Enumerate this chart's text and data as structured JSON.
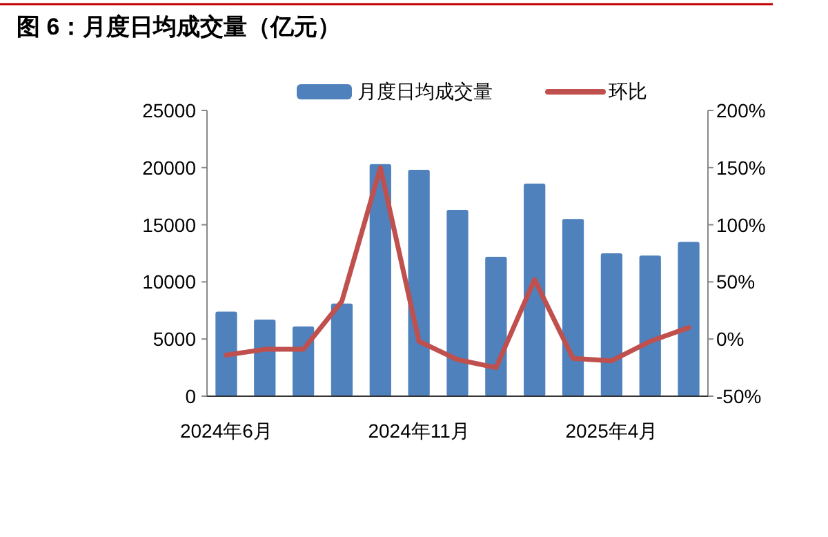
{
  "chart_data": {
    "type": "bar",
    "title": "图 6：月度日均成交量（亿元）",
    "categories": [
      "2024年6月",
      null,
      null,
      null,
      null,
      "2024年11月",
      null,
      null,
      null,
      null,
      "2025年4月",
      null,
      null
    ],
    "series": [
      {
        "name": "月度日均成交量",
        "color": "#4f81bd",
        "values": [
          7400,
          6700,
          6100,
          8100,
          20300,
          19800,
          16300,
          12200,
          18600,
          15500,
          12500,
          12300,
          13500
        ]
      },
      {
        "name": "环比",
        "type": "line",
        "axis": "y2",
        "color": "#c0504d",
        "values": [
          -14,
          -9,
          -9,
          33,
          150,
          -2,
          -18,
          -25,
          52,
          -17,
          -19,
          -2,
          10
        ]
      }
    ],
    "ylim": [
      0,
      25000
    ],
    "yticks": [
      0,
      5000,
      10000,
      15000,
      20000,
      25000
    ],
    "y2lim": [
      -50,
      200
    ],
    "y2ticks": [
      {
        "value": -50,
        "label": "-50%"
      },
      {
        "value": 0,
        "label": "0%"
      },
      {
        "value": 50,
        "label": "50%"
      },
      {
        "value": 100,
        "label": "100%"
      },
      {
        "value": 150,
        "label": "150%"
      },
      {
        "value": 200,
        "label": "200%"
      }
    ],
    "legend": "top",
    "grid": false
  }
}
